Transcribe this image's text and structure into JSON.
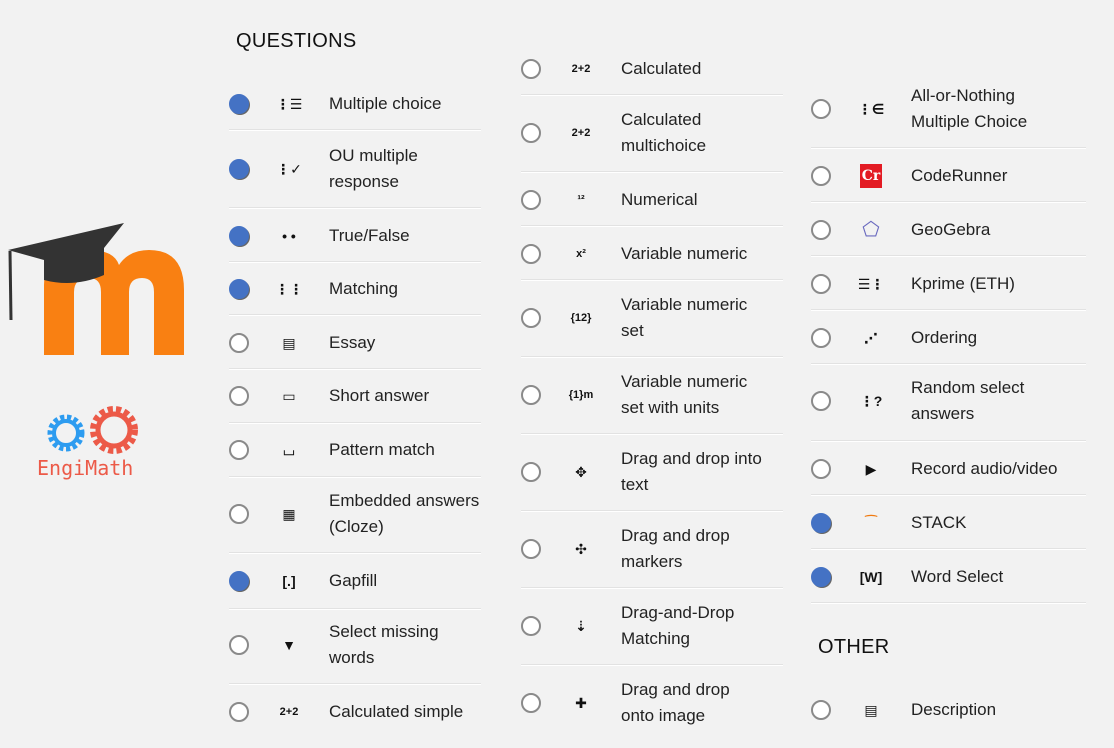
{
  "logo": {
    "brand": "moodle",
    "subbrand": "EngiMath",
    "colors": {
      "orange": "#f98012",
      "cap": "#333333",
      "gear_blue": "#2d9cf0",
      "gear_red": "#ec5a48"
    }
  },
  "sections": {
    "questions": "QUESTIONS",
    "other": "OTHER"
  },
  "accent": "#4472c4",
  "columns": [
    [
      {
        "label": "Multiple choice",
        "icon": "list-icon",
        "glyph": "⋮☰",
        "selected": true
      },
      {
        "label": "OU multiple\nresponse",
        "icon": "checklist-icon",
        "glyph": "⋮✓",
        "selected": true
      },
      {
        "label": "True/False",
        "icon": "two-dots-icon",
        "glyph": "• •",
        "selected": true
      },
      {
        "label": "Matching",
        "icon": "matching-icon",
        "glyph": "⋮⋮",
        "selected": true
      },
      {
        "label": "Essay",
        "icon": "document-icon",
        "glyph": "▤",
        "selected": false
      },
      {
        "label": "Short answer",
        "icon": "text-field-icon",
        "glyph": "▭",
        "selected": false
      },
      {
        "label": "Pattern match",
        "icon": "pattern-icon",
        "glyph": "⌴",
        "selected": false
      },
      {
        "label": "Embedded answers\n(Cloze)",
        "icon": "cloze-icon",
        "glyph": "▦",
        "selected": false
      },
      {
        "label": "Gapfill",
        "icon": "gapfill-icon",
        "glyph": "[.]",
        "selected": true
      },
      {
        "label": "Select missing\nwords",
        "icon": "triangle-down-icon",
        "glyph": "▼",
        "selected": false
      },
      {
        "label": "Calculated simple",
        "icon": "calc-icon",
        "glyph": "2+2",
        "selected": false
      }
    ],
    [
      {
        "label": "Calculated",
        "icon": "calc-icon",
        "glyph": "2+2",
        "selected": false
      },
      {
        "label": "Calculated\nmultichoice",
        "icon": "calc-icon",
        "glyph": "2+2",
        "selected": false
      },
      {
        "label": "Numerical",
        "icon": "numerical-icon",
        "glyph": "¹²",
        "selected": false
      },
      {
        "label": "Variable numeric",
        "icon": "variable-icon",
        "glyph": "x²",
        "selected": false
      },
      {
        "label": "Variable numeric\nset",
        "icon": "variable-set-icon",
        "glyph": "{12}",
        "selected": false
      },
      {
        "label": "Variable numeric\nset with units",
        "icon": "variable-units-icon",
        "glyph": "{1}m",
        "selected": false
      },
      {
        "label": "Drag and drop into\ntext",
        "icon": "move-icon",
        "glyph": "✥",
        "selected": false
      },
      {
        "label": "Drag and drop\nmarkers",
        "icon": "markers-icon",
        "glyph": "✣",
        "selected": false
      },
      {
        "label": "Drag-and-Drop\nMatching",
        "icon": "dd-matching-icon",
        "glyph": "⇣",
        "selected": false
      },
      {
        "label": "Drag and drop\nonto image",
        "icon": "move-icon",
        "glyph": "✚",
        "selected": false
      }
    ],
    [
      {
        "label": "All-or-Nothing\nMultiple Choice",
        "icon": "all-or-nothing-icon",
        "glyph": "⋮∈",
        "selected": false
      },
      {
        "label": "CodeRunner",
        "icon": "coderunner-icon",
        "glyph": "Cr",
        "selected": false
      },
      {
        "label": "GeoGebra",
        "icon": "geogebra-icon",
        "glyph": "⬠",
        "selected": false
      },
      {
        "label": "Kprime (ETH)",
        "icon": "kprime-icon",
        "glyph": "☰⋮",
        "selected": false
      },
      {
        "label": "Ordering",
        "icon": "ordering-icon",
        "glyph": "⋰",
        "selected": false
      },
      {
        "label": "Random select\nanswers",
        "icon": "random-icon",
        "glyph": "⋮?",
        "selected": false
      },
      {
        "label": "Record audio/video",
        "icon": "record-icon",
        "glyph": "▶",
        "selected": false
      },
      {
        "label": "STACK",
        "icon": "stack-icon",
        "glyph": "⁀",
        "selected": true
      },
      {
        "label": "Word Select",
        "icon": "word-select-icon",
        "glyph": "[W]",
        "selected": true
      }
    ]
  ],
  "other": [
    {
      "label": "Description",
      "icon": "description-icon",
      "glyph": "▤",
      "selected": false
    }
  ]
}
